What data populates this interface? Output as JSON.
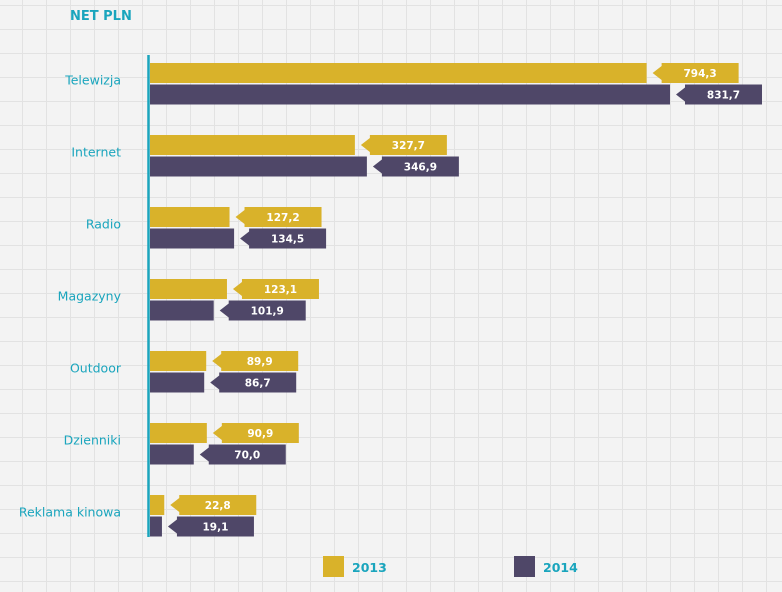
{
  "chart_data": {
    "type": "bar",
    "orientation": "horizontal",
    "title": "NET PLN",
    "categories": [
      "Telewizja",
      "Internet",
      "Radio",
      "Magazyny",
      "Outdoor",
      "Dzienniki",
      "Reklama kinowa"
    ],
    "series": [
      {
        "name": "2013",
        "color": "#d9b22a",
        "values": [
          794.3,
          327.7,
          127.2,
          123.1,
          89.9,
          90.9,
          22.8
        ],
        "labels": [
          "794,3",
          "327,7",
          "127,2",
          "123,1",
          "89,9",
          "90,9",
          "22,8"
        ]
      },
      {
        "name": "2014",
        "color": "#4f4768",
        "values": [
          831.7,
          346.9,
          134.5,
          101.9,
          86.7,
          70.0,
          19.1
        ],
        "labels": [
          "831,7",
          "346,9",
          "134,5",
          "101,9",
          "86,7",
          "70,0",
          "19,1"
        ]
      }
    ],
    "xlabel": "",
    "ylabel": "",
    "xlim": [
      0,
      831.7
    ],
    "grid": false,
    "legend": "bottom"
  },
  "colors": {
    "axis": "#1aa5bd",
    "text": "#1aa5bd"
  }
}
